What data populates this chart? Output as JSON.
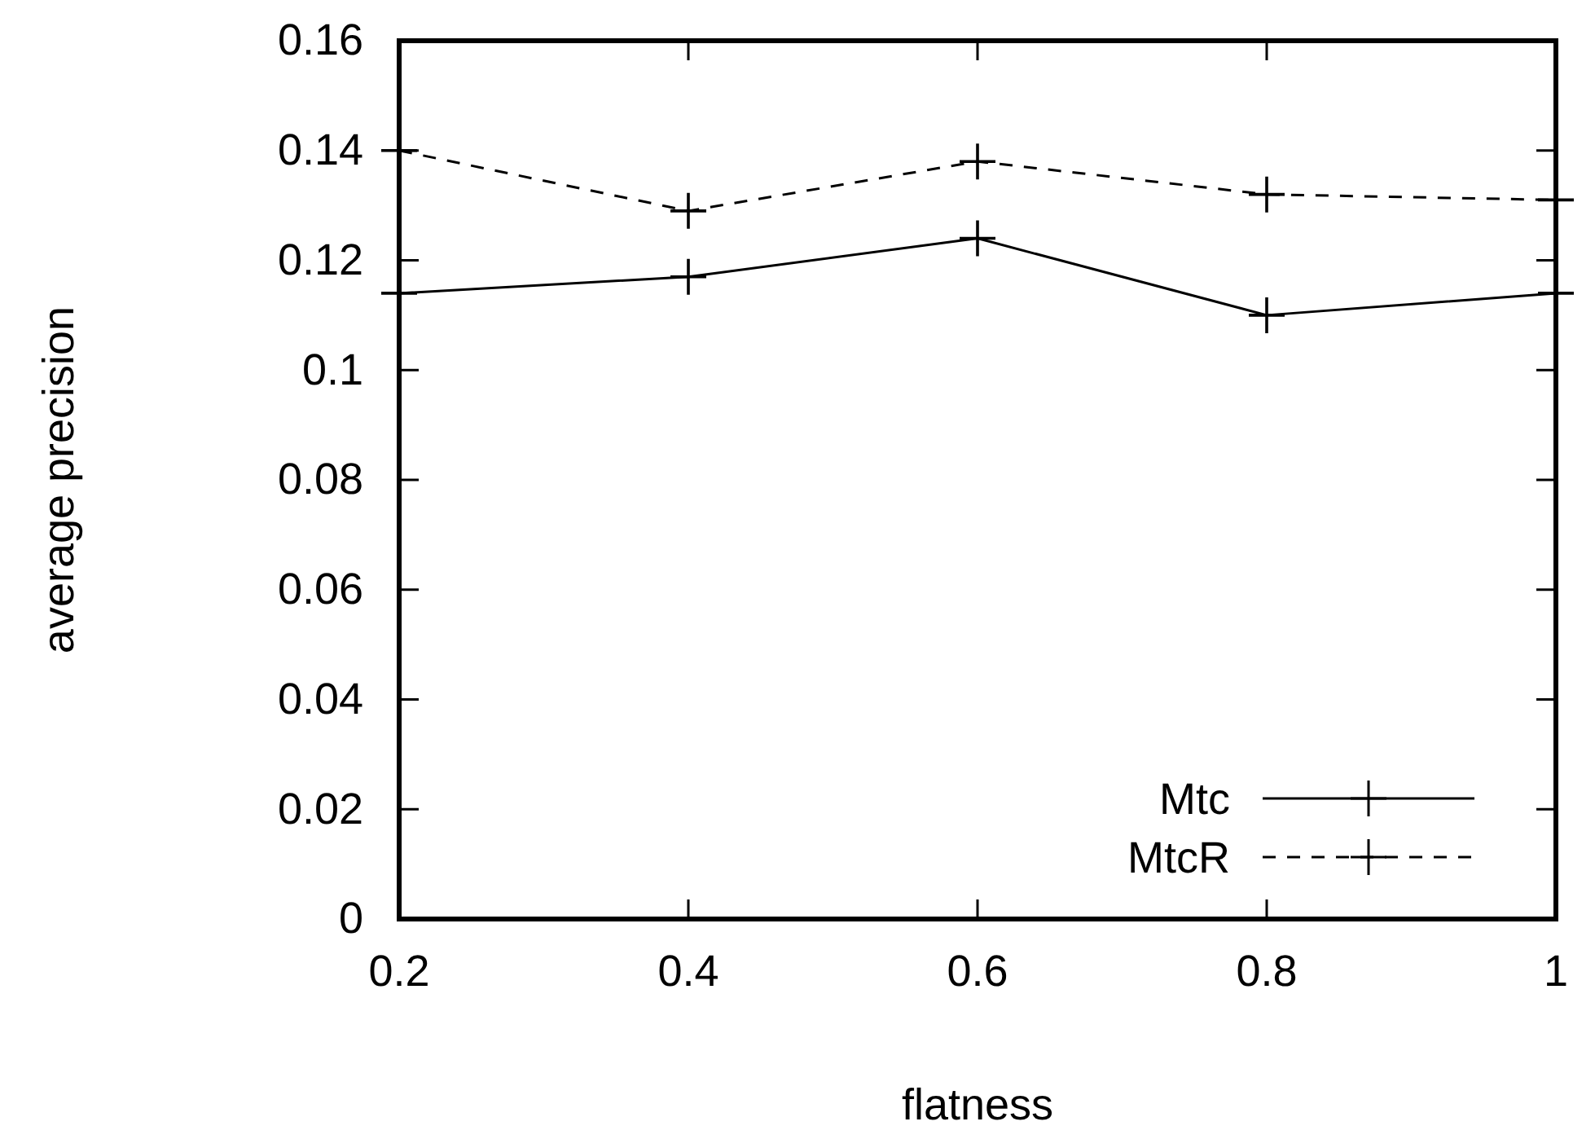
{
  "chart_data": {
    "type": "line",
    "xlabel": "flatness",
    "ylabel": "average precision",
    "x": [
      0.2,
      0.4,
      0.6,
      0.8,
      1
    ],
    "series": [
      {
        "name": "Mtc",
        "color": "#000000",
        "line_style": "solid",
        "values": [
          0.114,
          0.117,
          0.124,
          0.11,
          0.114
        ]
      },
      {
        "name": "MtcR",
        "color": "#000000",
        "line_style": "dashed",
        "values": [
          0.14,
          0.129,
          0.138,
          0.132,
          0.131
        ]
      }
    ],
    "xlim": [
      0.2,
      1
    ],
    "xticks": [
      0.2,
      0.4,
      0.6,
      0.8,
      1
    ],
    "ylim": [
      0,
      0.16
    ],
    "yticks": [
      0,
      0.02,
      0.04,
      0.06,
      0.08,
      0.1,
      0.12,
      0.14,
      0.16
    ],
    "marker": "cross",
    "legend": "bottom right",
    "grid": false
  }
}
